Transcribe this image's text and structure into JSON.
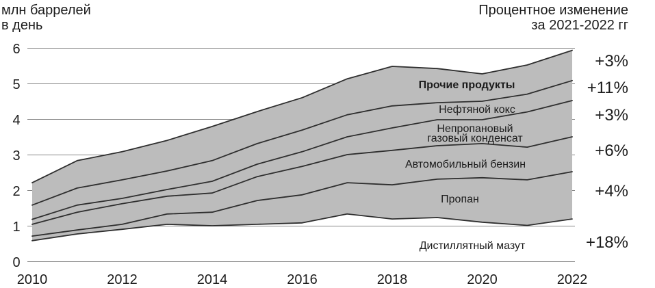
{
  "chart_data": {
    "type": "area",
    "stacked": true,
    "ylabel": "млн баррелей\nв день",
    "change_title": "Процентное изменение\nза 2021-2022 гг",
    "x": [
      2010,
      2011,
      2012,
      2013,
      2014,
      2015,
      2016,
      2017,
      2018,
      2019,
      2020,
      2021,
      2022
    ],
    "xticks": [
      "2010",
      "2012",
      "2014",
      "2016",
      "2018",
      "2020",
      "2022"
    ],
    "yticks": [
      "0",
      "1",
      "2",
      "3",
      "4",
      "5",
      "6"
    ],
    "xlim": [
      2010,
      2022
    ],
    "ylim": [
      0,
      6
    ],
    "grid": "horizontal",
    "legend": "inline",
    "colors": {
      "line": "#2e2e2e",
      "grid": "#858585",
      "text": "#1c1c1c",
      "background": "#ffffff"
    },
    "series": [
      {
        "name": "Дистиллятный мазут",
        "change": "+18%",
        "color": "#ffffff",
        "values": [
          0.58,
          0.77,
          0.9,
          1.04,
          1.0,
          1.04,
          1.08,
          1.33,
          1.19,
          1.23,
          1.1,
          1.01,
          1.19
        ]
      },
      {
        "name": "Пропан",
        "change": "+4%",
        "color": "#bcbcbc",
        "values": [
          0.13,
          0.11,
          0.14,
          0.29,
          0.38,
          0.67,
          0.79,
          0.88,
          0.96,
          1.08,
          1.25,
          1.28,
          1.33
        ]
      },
      {
        "name": "Автомобильный бензин",
        "change": "+6%",
        "color": "#bcbcbc",
        "values": [
          0.33,
          0.5,
          0.58,
          0.5,
          0.54,
          0.67,
          0.8,
          0.79,
          0.97,
          0.94,
          0.96,
          0.92,
          0.98
        ]
      },
      {
        "name": "Непропановый\nгазовый конденсат",
        "change": "+3%",
        "color": "#bcbcbc",
        "values": [
          0.14,
          0.2,
          0.15,
          0.19,
          0.33,
          0.35,
          0.41,
          0.5,
          0.63,
          0.73,
          0.67,
          0.99,
          1.02
        ]
      },
      {
        "name": "Нефтяной кокс",
        "change": "+11%",
        "color": "#bcbcbc",
        "values": [
          0.4,
          0.48,
          0.52,
          0.52,
          0.58,
          0.58,
          0.61,
          0.62,
          0.62,
          0.48,
          0.52,
          0.5,
          0.56
        ]
      },
      {
        "name": "Прочие продукты",
        "change": "+3%",
        "color": "#bcbcbc",
        "values": [
          0.63,
          0.77,
          0.79,
          0.86,
          0.96,
          0.9,
          0.91,
          1.01,
          1.11,
          0.96,
          0.77,
          0.82,
          0.85
        ]
      }
    ]
  }
}
